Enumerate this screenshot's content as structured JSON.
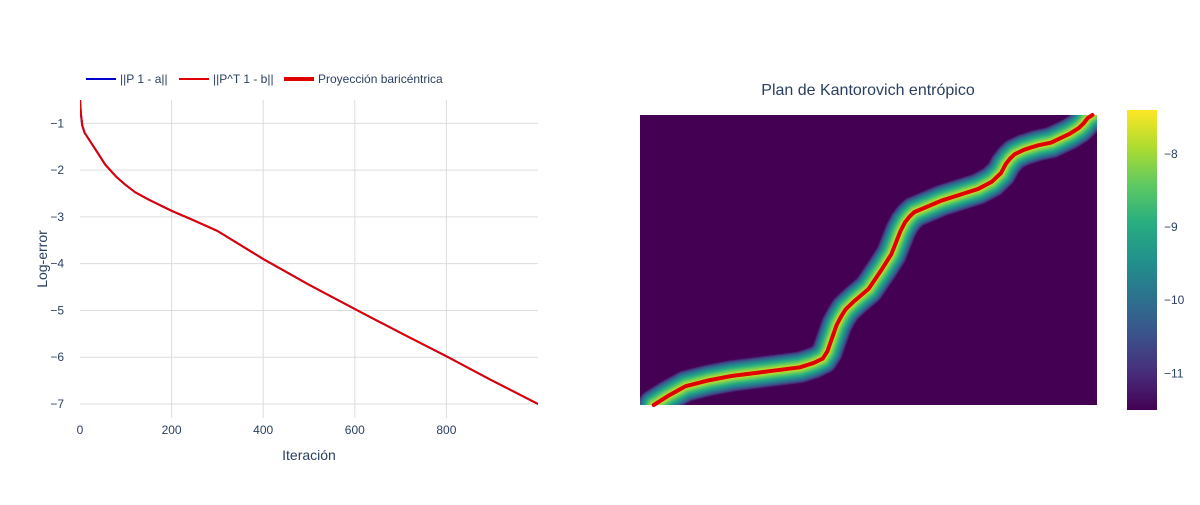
{
  "chart_data": [
    {
      "type": "line",
      "title": "",
      "xlabel": "Iteración",
      "ylabel": "Log-error",
      "xlim": [
        0,
        1000
      ],
      "ylim": [
        -7.3,
        -0.5
      ],
      "xticks": [
        0,
        200,
        400,
        600,
        800
      ],
      "yticks": [
        -1,
        -2,
        -3,
        -4,
        -5,
        -6,
        -7
      ],
      "grid": true,
      "legend_position": "top-left",
      "legend": [
        {
          "label": "||P 1 - a||",
          "color": "#0000cc",
          "style": "thin"
        },
        {
          "label": "||P^T 1 - b||",
          "color": "#e00000",
          "style": "thin"
        },
        {
          "label": "Proyección baricéntrica",
          "color": "#e00000",
          "style": "thick"
        }
      ],
      "series": [
        {
          "name": "||P 1 - a||",
          "color": "#0000cc",
          "x": [
            0,
            2,
            5,
            10,
            20,
            40,
            55,
            80,
            100,
            120,
            150,
            200,
            250,
            300,
            400,
            500,
            600,
            700,
            800,
            900,
            1000
          ],
          "y": [
            -0.5,
            -0.8,
            -1.05,
            -1.2,
            -1.35,
            -1.65,
            -1.88,
            -2.15,
            -2.32,
            -2.47,
            -2.63,
            -2.87,
            -3.08,
            -3.3,
            -3.9,
            -4.45,
            -4.97,
            -5.48,
            -5.98,
            -6.5,
            -7.0
          ]
        },
        {
          "name": "||P^T 1 - b||",
          "color": "#e00000",
          "x": [
            0,
            2,
            5,
            10,
            20,
            40,
            55,
            80,
            100,
            120,
            150,
            200,
            250,
            300,
            400,
            500,
            600,
            700,
            800,
            900,
            1000
          ],
          "y": [
            -0.5,
            -0.8,
            -1.05,
            -1.2,
            -1.35,
            -1.65,
            -1.88,
            -2.15,
            -2.32,
            -2.47,
            -2.63,
            -2.87,
            -3.08,
            -3.3,
            -3.9,
            -4.45,
            -4.97,
            -5.48,
            -5.98,
            -6.5,
            -7.0
          ]
        }
      ]
    },
    {
      "type": "heatmap",
      "title": "Plan de Kantorovich entrópico",
      "colorscale": "Viridis",
      "zlim": [
        -11.5,
        -7.4
      ],
      "colorbar_ticks": [
        -8,
        -9,
        -10,
        -11
      ],
      "band_width": 0.055,
      "barycentric_projection": {
        "name": "Proyección baricéntrica",
        "color": "#e00000",
        "x": [
          0.03,
          0.06,
          0.1,
          0.15,
          0.2,
          0.25,
          0.3,
          0.35,
          0.38,
          0.4,
          0.41,
          0.42,
          0.43,
          0.44,
          0.45,
          0.47,
          0.5,
          0.53,
          0.55,
          0.56,
          0.57,
          0.58,
          0.59,
          0.6,
          0.63,
          0.66,
          0.7,
          0.74,
          0.77,
          0.79,
          0.8,
          0.81,
          0.82,
          0.84,
          0.87,
          0.9,
          0.92,
          0.94,
          0.96,
          0.97,
          0.98,
          0.99
        ],
        "y": [
          0.0,
          0.03,
          0.065,
          0.085,
          0.1,
          0.11,
          0.12,
          0.13,
          0.145,
          0.16,
          0.185,
          0.23,
          0.275,
          0.305,
          0.33,
          0.36,
          0.4,
          0.47,
          0.52,
          0.56,
          0.6,
          0.63,
          0.65,
          0.665,
          0.685,
          0.705,
          0.725,
          0.745,
          0.77,
          0.8,
          0.83,
          0.85,
          0.865,
          0.88,
          0.895,
          0.905,
          0.92,
          0.935,
          0.955,
          0.97,
          0.99,
          1.0
        ]
      }
    }
  ]
}
